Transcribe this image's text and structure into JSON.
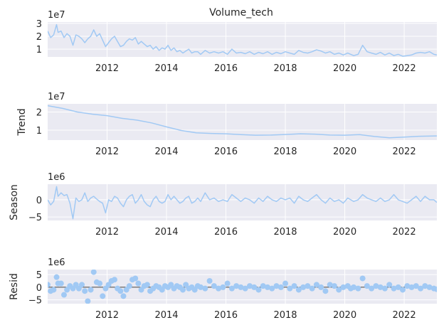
{
  "chart_data": {
    "type": "line",
    "title": "Volume_tech",
    "x_range": [
      2010.0,
      2023.1
    ],
    "x_ticks": [
      2012,
      2014,
      2016,
      2018,
      2020,
      2022
    ],
    "x_tick_labels": [
      "2012",
      "2014",
      "2016",
      "2018",
      "2020",
      "2022"
    ],
    "colors": {
      "line": "#a1c9f4",
      "background": "#eaeaf2",
      "grid": "#ffffff",
      "text": "#262626",
      "zero_line": "#000000"
    },
    "panels": [
      {
        "id": "observed",
        "ylabel": "",
        "offset_label": "1e7",
        "ylim": [
          0.4,
          3.1
        ],
        "y_ticks": [
          1,
          2,
          3
        ],
        "y_tick_labels": [
          "1",
          "2",
          "3"
        ],
        "kind": "line",
        "series": {
          "name": "Volume_tech",
          "x": [
            2010.0,
            2010.1,
            2010.2,
            2010.3,
            2010.35,
            2010.45,
            2010.55,
            2010.65,
            2010.75,
            2010.85,
            2010.95,
            2011.05,
            2011.15,
            2011.25,
            2011.35,
            2011.45,
            2011.55,
            2011.65,
            2011.75,
            2011.85,
            2011.95,
            2012.05,
            2012.15,
            2012.25,
            2012.35,
            2012.45,
            2012.55,
            2012.65,
            2012.75,
            2012.85,
            2012.95,
            2013.05,
            2013.15,
            2013.25,
            2013.35,
            2013.45,
            2013.55,
            2013.65,
            2013.75,
            2013.85,
            2013.95,
            2014.05,
            2014.15,
            2014.25,
            2014.35,
            2014.45,
            2014.55,
            2014.65,
            2014.75,
            2014.85,
            2014.95,
            2015.05,
            2015.15,
            2015.3,
            2015.45,
            2015.6,
            2015.75,
            2015.9,
            2016.05,
            2016.2,
            2016.35,
            2016.5,
            2016.65,
            2016.8,
            2016.95,
            2017.1,
            2017.25,
            2017.4,
            2017.55,
            2017.7,
            2017.85,
            2018.0,
            2018.15,
            2018.3,
            2018.45,
            2018.6,
            2018.75,
            2018.9,
            2019.05,
            2019.2,
            2019.35,
            2019.5,
            2019.65,
            2019.8,
            2019.95,
            2020.1,
            2020.2,
            2020.3,
            2020.45,
            2020.6,
            2020.75,
            2020.9,
            2021.05,
            2021.2,
            2021.35,
            2021.5,
            2021.65,
            2021.8,
            2021.95,
            2022.1,
            2022.25,
            2022.4,
            2022.55,
            2022.7,
            2022.85,
            2023.0,
            2023.1
          ],
          "y": [
            2.4,
            1.9,
            2.1,
            2.9,
            2.3,
            2.4,
            1.9,
            2.2,
            2.0,
            1.3,
            2.1,
            2.0,
            1.8,
            1.5,
            1.8,
            2.0,
            2.5,
            2.0,
            2.2,
            1.7,
            1.2,
            1.5,
            1.8,
            2.0,
            1.6,
            1.2,
            1.3,
            1.6,
            1.8,
            1.7,
            1.9,
            1.4,
            1.6,
            1.4,
            1.2,
            1.3,
            1.0,
            1.2,
            0.9,
            1.1,
            1.0,
            1.3,
            0.9,
            1.1,
            0.8,
            0.9,
            0.7,
            0.85,
            1.0,
            0.7,
            0.8,
            0.8,
            0.6,
            0.9,
            0.7,
            0.8,
            0.7,
            0.8,
            0.6,
            1.0,
            0.7,
            0.75,
            0.65,
            0.8,
            0.6,
            0.75,
            0.65,
            0.8,
            0.6,
            0.75,
            0.65,
            0.8,
            0.7,
            0.6,
            0.9,
            0.75,
            0.7,
            0.8,
            0.95,
            0.85,
            0.7,
            0.8,
            0.6,
            0.7,
            0.55,
            0.7,
            0.6,
            0.5,
            0.6,
            1.3,
            0.8,
            0.7,
            0.6,
            0.75,
            0.55,
            0.7,
            0.5,
            0.6,
            0.45,
            0.5,
            0.55,
            0.7,
            0.75,
            0.7,
            0.8,
            0.6,
            0.55
          ]
        }
      },
      {
        "id": "trend",
        "ylabel": "Trend",
        "offset_label": "1e7",
        "ylim": [
          0.45,
          2.45
        ],
        "y_ticks": [
          1,
          2
        ],
        "y_tick_labels": [
          "1",
          "2"
        ],
        "kind": "line",
        "series": {
          "name": "Trend",
          "x": [
            2010.0,
            2010.5,
            2011.0,
            2011.5,
            2012.0,
            2012.5,
            2013.0,
            2013.5,
            2014.0,
            2014.5,
            2015.0,
            2015.5,
            2016.0,
            2016.5,
            2017.0,
            2017.5,
            2018.0,
            2018.5,
            2019.0,
            2019.5,
            2020.0,
            2020.5,
            2021.0,
            2021.5,
            2022.0,
            2022.5,
            2023.1
          ],
          "y": [
            2.35,
            2.2,
            2.0,
            1.88,
            1.8,
            1.65,
            1.55,
            1.4,
            1.18,
            0.98,
            0.85,
            0.82,
            0.8,
            0.75,
            0.72,
            0.73,
            0.76,
            0.8,
            0.78,
            0.73,
            0.72,
            0.75,
            0.65,
            0.58,
            0.62,
            0.66,
            0.68
          ]
        }
      },
      {
        "id": "seasonal",
        "ylabel": "Season",
        "offset_label": "1e6",
        "ylim": [
          -6,
          4.5
        ],
        "y_ticks": [
          -5,
          0
        ],
        "y_tick_labels": [
          "−5",
          "0"
        ],
        "kind": "line",
        "series": {
          "name": "Season",
          "x": [
            2010.0,
            2010.1,
            2010.2,
            2010.3,
            2010.35,
            2010.45,
            2010.55,
            2010.65,
            2010.75,
            2010.85,
            2010.95,
            2011.05,
            2011.15,
            2011.25,
            2011.35,
            2011.45,
            2011.55,
            2011.65,
            2011.75,
            2011.85,
            2011.95,
            2012.05,
            2012.15,
            2012.25,
            2012.35,
            2012.45,
            2012.55,
            2012.65,
            2012.75,
            2012.85,
            2012.95,
            2013.05,
            2013.15,
            2013.25,
            2013.35,
            2013.45,
            2013.55,
            2013.65,
            2013.75,
            2013.85,
            2013.95,
            2014.05,
            2014.15,
            2014.25,
            2014.35,
            2014.45,
            2014.55,
            2014.65,
            2014.75,
            2014.85,
            2014.95,
            2015.05,
            2015.15,
            2015.3,
            2015.45,
            2015.6,
            2015.75,
            2015.9,
            2016.05,
            2016.2,
            2016.35,
            2016.5,
            2016.65,
            2016.8,
            2016.95,
            2017.1,
            2017.25,
            2017.4,
            2017.55,
            2017.7,
            2017.85,
            2018.0,
            2018.15,
            2018.3,
            2018.45,
            2018.6,
            2018.75,
            2018.9,
            2019.05,
            2019.2,
            2019.35,
            2019.5,
            2019.65,
            2019.8,
            2019.95,
            2020.1,
            2020.2,
            2020.3,
            2020.45,
            2020.6,
            2020.75,
            2020.9,
            2021.05,
            2021.2,
            2021.35,
            2021.5,
            2021.65,
            2021.8,
            2021.95,
            2022.1,
            2022.25,
            2022.4,
            2022.55,
            2022.7,
            2022.85,
            2023.0,
            2023.1
          ],
          "y": [
            0.0,
            -1.5,
            -0.5,
            3.8,
            1.0,
            2.0,
            1.2,
            1.5,
            -1.0,
            -5.5,
            0.5,
            -0.5,
            0.0,
            2.0,
            -0.5,
            0.5,
            1.0,
            0.2,
            -0.5,
            -1.0,
            -3.8,
            0.0,
            -0.5,
            1.0,
            0.5,
            -1.0,
            -2.0,
            0.0,
            1.0,
            1.5,
            -1.0,
            0.0,
            1.5,
            -0.5,
            -1.5,
            -2.0,
            0.0,
            1.0,
            -0.5,
            -1.0,
            -0.5,
            1.5,
            0.0,
            1.0,
            0.0,
            -1.0,
            -0.5,
            0.5,
            1.0,
            -1.0,
            -0.5,
            0.5,
            -0.5,
            2.0,
            0.0,
            0.5,
            -0.5,
            0.0,
            -0.5,
            1.5,
            0.5,
            -0.5,
            0.5,
            0.0,
            -1.0,
            0.5,
            -0.5,
            1.0,
            0.0,
            -0.5,
            0.5,
            0.0,
            0.5,
            -1.0,
            1.0,
            0.0,
            -0.5,
            0.5,
            1.5,
            0.0,
            -1.0,
            0.5,
            -0.5,
            0.0,
            -1.0,
            0.5,
            0.0,
            -0.5,
            0.0,
            1.5,
            0.5,
            0.0,
            -0.5,
            0.5,
            -0.5,
            0.0,
            1.5,
            0.0,
            -0.5,
            -1.0,
            0.0,
            1.0,
            -0.5,
            1.0,
            0.0,
            0.0,
            -0.8
          ]
        }
      },
      {
        "id": "resid",
        "ylabel": "Resid",
        "offset_label": "1e6",
        "ylim": [
          -6.5,
          7
        ],
        "y_ticks": [
          -5,
          0,
          5
        ],
        "y_tick_labels": [
          "−5",
          "0",
          "5"
        ],
        "kind": "scatter",
        "zero_line": true,
        "series": {
          "name": "Resid",
          "x": [
            2010.0,
            2010.1,
            2010.2,
            2010.3,
            2010.35,
            2010.45,
            2010.55,
            2010.65,
            2010.75,
            2010.85,
            2010.95,
            2011.05,
            2011.15,
            2011.25,
            2011.35,
            2011.45,
            2011.55,
            2011.65,
            2011.75,
            2011.85,
            2011.95,
            2012.05,
            2012.15,
            2012.25,
            2012.35,
            2012.45,
            2012.55,
            2012.65,
            2012.75,
            2012.85,
            2012.95,
            2013.05,
            2013.15,
            2013.25,
            2013.35,
            2013.45,
            2013.55,
            2013.65,
            2013.75,
            2013.85,
            2013.95,
            2014.05,
            2014.15,
            2014.25,
            2014.35,
            2014.45,
            2014.55,
            2014.65,
            2014.75,
            2014.85,
            2014.95,
            2015.05,
            2015.15,
            2015.3,
            2015.45,
            2015.6,
            2015.75,
            2015.9,
            2016.05,
            2016.2,
            2016.35,
            2016.5,
            2016.65,
            2016.8,
            2016.95,
            2017.1,
            2017.25,
            2017.4,
            2017.55,
            2017.7,
            2017.85,
            2018.0,
            2018.15,
            2018.3,
            2018.45,
            2018.6,
            2018.75,
            2018.9,
            2019.05,
            2019.2,
            2019.35,
            2019.5,
            2019.65,
            2019.8,
            2019.95,
            2020.1,
            2020.2,
            2020.3,
            2020.45,
            2020.6,
            2020.75,
            2020.9,
            2021.05,
            2021.2,
            2021.35,
            2021.5,
            2021.65,
            2021.8,
            2021.95,
            2022.1,
            2022.25,
            2022.4,
            2022.55,
            2022.7,
            2022.85,
            2023.0,
            2023.1
          ],
          "y": [
            1.0,
            -1.5,
            -1.0,
            4.0,
            1.5,
            1.5,
            -3.0,
            -1.0,
            0.5,
            -0.5,
            1.0,
            -0.5,
            1.0,
            -1.5,
            -5.5,
            -1.0,
            6.0,
            2.0,
            1.5,
            -3.5,
            -0.5,
            1.0,
            2.5,
            3.0,
            -0.5,
            -1.5,
            -3.5,
            -1.0,
            0.5,
            3.0,
            3.5,
            1.5,
            -1.0,
            0.5,
            1.0,
            -1.5,
            -0.5,
            0.5,
            0.0,
            -1.0,
            0.5,
            0.0,
            1.0,
            -0.5,
            0.5,
            0.0,
            -1.0,
            1.0,
            -0.5,
            0.0,
            -1.0,
            0.5,
            0.0,
            -0.5,
            2.5,
            0.5,
            -0.5,
            0.0,
            1.5,
            -0.5,
            0.5,
            0.0,
            -0.5,
            0.5,
            0.0,
            -1.0,
            0.5,
            0.0,
            -0.5,
            0.5,
            0.0,
            1.5,
            -0.5,
            0.5,
            -1.0,
            0.0,
            0.5,
            -0.5,
            1.0,
            0.0,
            -1.5,
            1.0,
            0.5,
            -1.0,
            0.0,
            0.5,
            -0.5,
            0.0,
            -0.5,
            3.5,
            0.5,
            -0.5,
            0.5,
            0.0,
            -0.5,
            1.0,
            -0.5,
            0.0,
            -1.0,
            0.5,
            0.0,
            0.5,
            -0.5,
            0.5,
            0.0,
            -0.5,
            -0.8
          ]
        }
      }
    ]
  }
}
